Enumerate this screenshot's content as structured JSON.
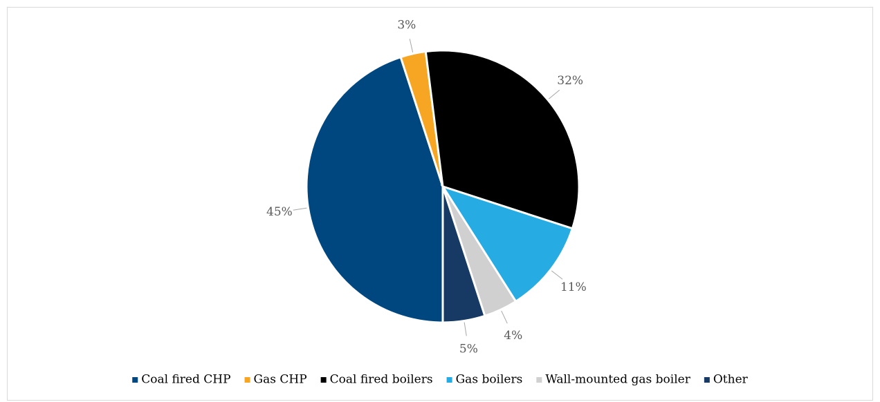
{
  "chart_data": {
    "type": "pie",
    "categories": [
      "Coal fired CHP",
      "Gas CHP",
      "Coal fired boilers",
      "Gas boilers",
      "Wall-mounted gas boiler",
      "Other"
    ],
    "values": [
      45,
      3,
      32,
      11,
      4,
      5
    ],
    "value_labels": [
      "45%",
      "3%",
      "32%",
      "11%",
      "4%",
      "5%"
    ],
    "colors": [
      "#00477f",
      "#f6a623",
      "#000000",
      "#26abe2",
      "#d0d0d0",
      "#163a63"
    ],
    "legend": "bottom"
  }
}
